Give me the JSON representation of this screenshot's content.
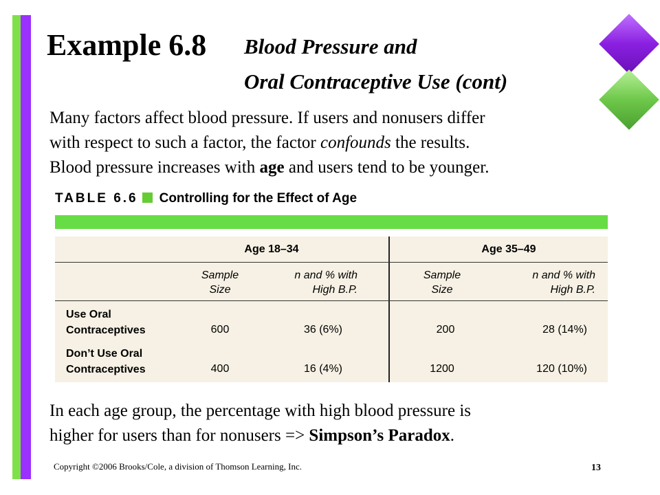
{
  "slide": {
    "title_main": "Example 6.8",
    "title_sub_line1": "Blood Pressure and",
    "title_sub_line2": "Oral Contraceptive Use (cont)",
    "para1": {
      "line1": "Many factors affect blood pressure. If users and nonusers differ",
      "line2_pre": "with respect to such a factor, the factor ",
      "line2_em": "confounds",
      "line2_post": " the results.",
      "line3_pre": "Blood pressure increases with ",
      "line3_bold": "age",
      "line3_post": " and users tend to be younger."
    },
    "para2": {
      "line1": "In each age group, the percentage with high blood pressure is",
      "line2_pre": "higher for users than for nonusers => ",
      "line2_bold": "Simpson’s Paradox",
      "line2_post": "."
    },
    "footer": {
      "copyright": "Copyright ©2006 Brooks/Cole, a division of Thomson Learning, Inc.",
      "page": "13"
    }
  },
  "table": {
    "label": "TABLE 6.6",
    "title": "Controlling for the Effect of Age",
    "groups": [
      "Age 18–34",
      "Age 35–49"
    ],
    "subheaders": [
      {
        "line1": "Sample",
        "line2": "Size"
      },
      {
        "line1": "n and % with",
        "line2": "High B.P."
      },
      {
        "line1": "Sample",
        "line2": "Size"
      },
      {
        "line1": "n and % with",
        "line2": "High B.P."
      }
    ],
    "rows": [
      {
        "label_line1": "Use Oral",
        "label_line2": "Contraceptives",
        "values": [
          "600",
          "36 (6%)",
          "200",
          "28 (14%)"
        ]
      },
      {
        "label_line1": "Don’t Use Oral",
        "label_line2": "Contraceptives",
        "values": [
          "400",
          "16 (4%)",
          "1200",
          "120 (10%)"
        ]
      }
    ]
  },
  "colors": {
    "accent_green": "#66dd44",
    "accent_purple": "#9b30ff",
    "table_bg": "#f6f1e4"
  }
}
